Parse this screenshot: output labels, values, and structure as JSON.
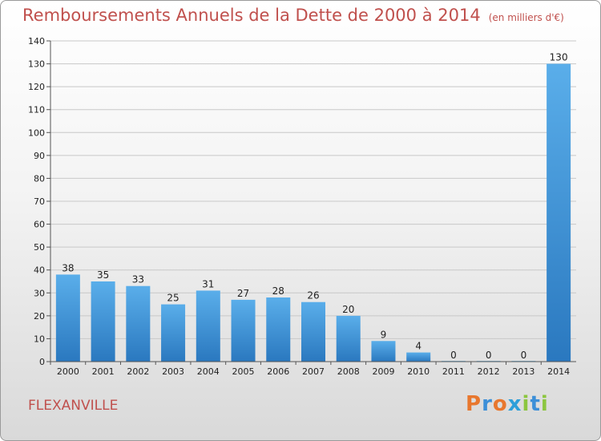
{
  "chart_data": {
    "type": "bar",
    "title": "Remboursements Annuels de la Dette de 2000 à 2014",
    "subtitle": "(en milliers d'€)",
    "categories": [
      "2000",
      "2001",
      "2002",
      "2003",
      "2004",
      "2005",
      "2006",
      "2007",
      "2008",
      "2009",
      "2010",
      "2011",
      "2012",
      "2013",
      "2014"
    ],
    "values": [
      38,
      35,
      33,
      25,
      31,
      27,
      28,
      26,
      20,
      9,
      4,
      0,
      0,
      0,
      130
    ],
    "ylim": [
      0,
      140
    ],
    "yticks": [
      0,
      10,
      20,
      30,
      40,
      50,
      60,
      70,
      80,
      90,
      100,
      110,
      120,
      130,
      140
    ],
    "grid": true,
    "bar_color": "#3d8fd6"
  },
  "commune": "FLEXANVILLE",
  "logo": {
    "letters": [
      "P",
      "r",
      "o",
      "x",
      "i",
      "t",
      "i"
    ],
    "colors": [
      "#e8772e",
      "#3c8fd8",
      "#e8772e",
      "#2d9fd9",
      "#8cc63f",
      "#3c8fd8",
      "#8cc63f"
    ]
  }
}
